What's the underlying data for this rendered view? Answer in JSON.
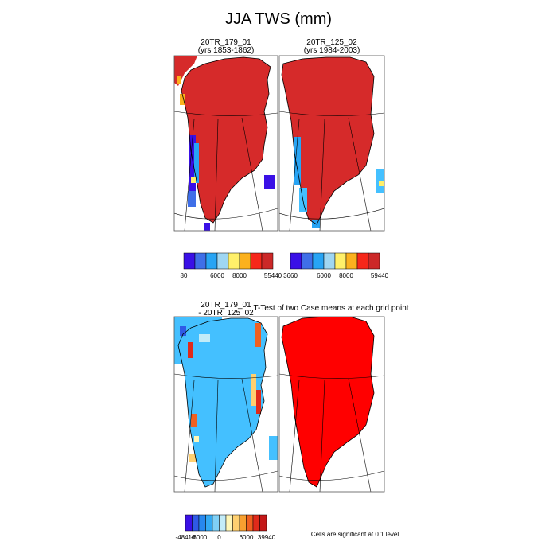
{
  "title": "JJA TWS (mm)",
  "colors": {
    "ice": "#d62a2a",
    "sig": "#ff0000",
    "diff_main": "#44c0ff",
    "outline": "#000000",
    "frame": "#555555"
  },
  "chart_data": [
    {
      "type": "heatmap",
      "title": "20TR_179_01",
      "subtitle": "(yrs 1853-1862)",
      "colorbar": {
        "colors": [
          "#3a10e6",
          "#3f6fe8",
          "#28a4f4",
          "#9fd6f2",
          "#fff06a",
          "#fbb11e",
          "#f6271a",
          "#cc2828"
        ],
        "tick_labels": [
          "80",
          "6000",
          "8000",
          "55440"
        ]
      }
    },
    {
      "type": "heatmap",
      "title": "20TR_125_02",
      "subtitle": "(yrs 1984-2003)",
      "colorbar": {
        "colors": [
          "#3a10e6",
          "#3f6fe8",
          "#28a4f4",
          "#9fd6f2",
          "#fff06a",
          "#fbb11e",
          "#f6271a",
          "#cc2828"
        ],
        "tick_labels": [
          "3660",
          "6000",
          "8000",
          "59440"
        ]
      }
    },
    {
      "type": "heatmap",
      "title": "20TR_179_01",
      "subtitle": "- 20TR_125_02",
      "colorbar": {
        "colors": [
          "#3a10e6",
          "#2f5ae6",
          "#2788ef",
          "#33aaf4",
          "#7fd0f6",
          "#c3ecf8",
          "#fff7b8",
          "#ffd070",
          "#f8a030",
          "#f06020",
          "#e02a1a",
          "#c41818"
        ],
        "tick_labels": [
          "-48410",
          "-6000",
          "0",
          "6000",
          "39940"
        ]
      }
    },
    {
      "type": "heatmap",
      "title": "T-Test of two Case means at each grid point",
      "note": "Cells are significant at 0.1 level"
    }
  ]
}
